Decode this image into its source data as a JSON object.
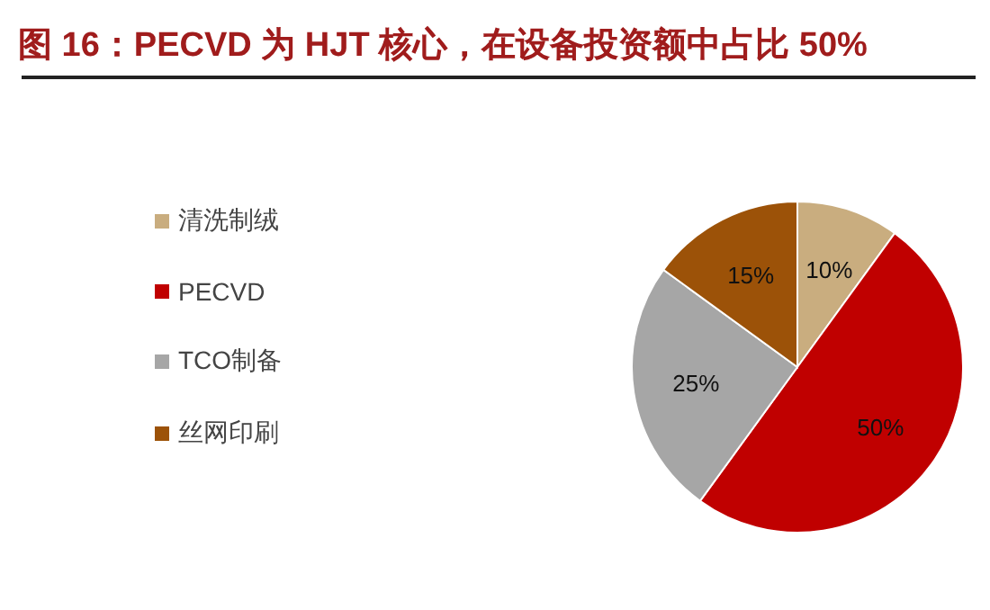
{
  "chart_data": {
    "type": "pie",
    "title": "图 16：PECVD 为 HJT 核心，在设备投资额中占比 50%",
    "categories": [
      "清洗制绒",
      "PECVD",
      "TCO制备",
      "丝网印刷"
    ],
    "values": [
      10,
      50,
      25,
      15
    ],
    "value_labels": [
      "10%",
      "50%",
      "25%",
      "15%"
    ],
    "colors": [
      "#c9ad7f",
      "#c00000",
      "#a6a6a6",
      "#9c5208"
    ],
    "legend": "left"
  }
}
